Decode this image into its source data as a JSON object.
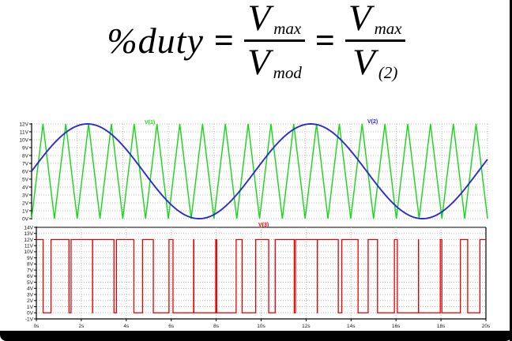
{
  "formula": {
    "lhs": "%duty",
    "equals": "=",
    "fractions": [
      {
        "num_base": "V",
        "num_sub": "max",
        "den_base": "V",
        "den_sub": "mod"
      },
      {
        "num_base": "V",
        "num_sub": "max",
        "den_base": "V",
        "den_sub": "(2)"
      }
    ]
  },
  "chart_data": [
    {
      "type": "line",
      "xlim": [
        0,
        20
      ],
      "ylim": [
        0,
        12
      ],
      "x_unit": "s",
      "grid": true,
      "xgrid_step_s": 2,
      "ytick_step_v": 1,
      "ytick_labels": [
        "12V",
        "11V",
        "10V",
        "9V",
        "8V",
        "7V",
        "6V",
        "5V",
        "4V",
        "3V",
        "2V",
        "1V",
        "0V"
      ],
      "legend_position": "top-inside",
      "series": [
        {
          "name": "V(1)",
          "color": "#17d517",
          "waveform": "triangle",
          "min_v": 0,
          "max_v": 12,
          "period_s": 1,
          "start": "0V rising"
        },
        {
          "name": "V(2)",
          "color": "#2a2ad0",
          "waveform": "sine",
          "offset_v": 6,
          "amplitude_v": 6,
          "period_s": 9.8,
          "start": "6V rising"
        }
      ]
    },
    {
      "type": "line",
      "xlim": [
        0,
        20
      ],
      "ylim": [
        -1,
        14
      ],
      "x_unit": "s",
      "grid": true,
      "xgrid_step_s": 2,
      "ytick_step_v": 1,
      "ytick_labels": [
        "14V",
        "13V",
        "12V",
        "11V",
        "10V",
        "9V",
        "8V",
        "7V",
        "6V",
        "5V",
        "4V",
        "3V",
        "2V",
        "1V",
        "0V",
        "-1V"
      ],
      "xtick_labels": [
        "0s",
        "2s",
        "4s",
        "6s",
        "8s",
        "10s",
        "12s",
        "14s",
        "16s",
        "18s",
        "20s"
      ],
      "legend_position": "top-inside",
      "series": [
        {
          "name": "V(3)",
          "color": "#e60000",
          "waveform": "pwm",
          "high_v": 12,
          "low_v": 0,
          "rule": "high when V(2) >= V(1), else low"
        }
      ]
    }
  ]
}
